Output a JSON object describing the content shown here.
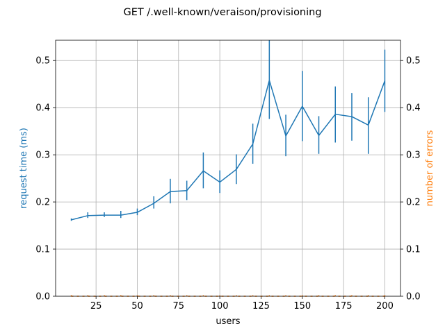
{
  "chart_data": {
    "type": "line",
    "title": "GET /.well-known/veraison/provisioning",
    "xlabel": "users",
    "ylabel_left": "request time (ms)",
    "ylabel_right": "number of errors",
    "xlim": [
      0.5,
      209.5
    ],
    "ylim": [
      0,
      0.543
    ],
    "xticks": [
      25,
      50,
      75,
      100,
      125,
      150,
      175,
      200
    ],
    "yticks": [
      0.0,
      0.1,
      0.2,
      0.3,
      0.4,
      0.5
    ],
    "ytick_labels": [
      "0.0",
      "0.1",
      "0.2",
      "0.3",
      "0.4",
      "0.5"
    ],
    "grid": true,
    "colors": {
      "left_series": "#1f77b4",
      "right_series": "#ff7f0e",
      "grid": "#b0b0b0",
      "axis": "#000000"
    },
    "x": [
      10,
      20,
      30,
      40,
      50,
      60,
      70,
      80,
      90,
      100,
      110,
      120,
      130,
      140,
      150,
      160,
      170,
      180,
      190,
      200
    ],
    "series": [
      {
        "axis": "left",
        "values": [
          0.162,
          0.171,
          0.172,
          0.172,
          0.178,
          0.197,
          0.222,
          0.224,
          0.266,
          0.242,
          0.269,
          0.323,
          0.458,
          0.34,
          0.403,
          0.341,
          0.386,
          0.381,
          0.363,
          0.457
        ],
        "err_low": [
          0.16,
          0.166,
          0.168,
          0.166,
          0.172,
          0.186,
          0.197,
          0.204,
          0.229,
          0.219,
          0.238,
          0.281,
          0.376,
          0.297,
          0.329,
          0.302,
          0.326,
          0.33,
          0.302,
          0.391
        ],
        "err_high": [
          0.165,
          0.178,
          0.178,
          0.181,
          0.186,
          0.212,
          0.249,
          0.245,
          0.305,
          0.267,
          0.301,
          0.366,
          0.543,
          0.385,
          0.478,
          0.382,
          0.445,
          0.431,
          0.422,
          0.523
        ]
      },
      {
        "axis": "right",
        "values": [
          0,
          0,
          0,
          0,
          0,
          0,
          0,
          0,
          0,
          0,
          0,
          0,
          0,
          0,
          0,
          0,
          0,
          0,
          0,
          0
        ]
      }
    ]
  }
}
